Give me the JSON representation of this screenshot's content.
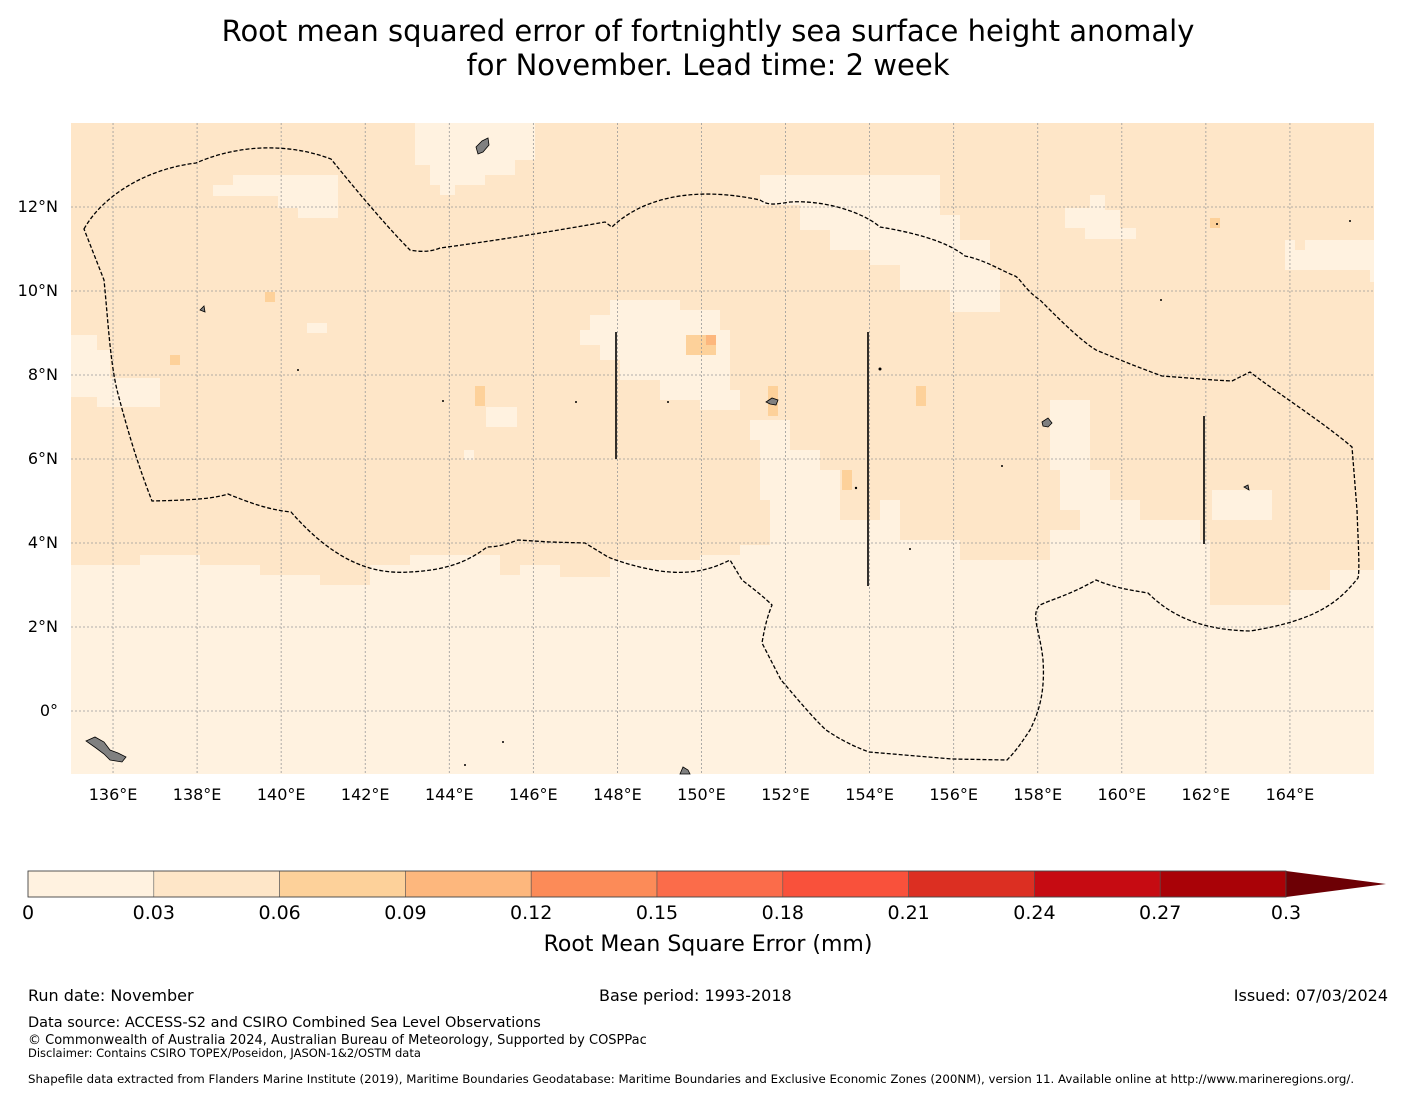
{
  "title": {
    "line1": "Root mean squared error of fortnightly sea surface height anomaly",
    "line2": "for November. Lead time: 2 week"
  },
  "map": {
    "lat_labels": [
      "12°N",
      "10°N",
      "8°N",
      "6°N",
      "4°N",
      "2°N",
      "0°"
    ],
    "lat_values": [
      12,
      10,
      8,
      6,
      4,
      2,
      0
    ],
    "lon_labels": [
      "136°E",
      "138°E",
      "140°E",
      "142°E",
      "144°E",
      "146°E",
      "148°E",
      "150°E",
      "152°E",
      "154°E",
      "156°E",
      "158°E",
      "160°E",
      "162°E",
      "164°E"
    ],
    "lon_values": [
      136,
      138,
      140,
      142,
      144,
      146,
      148,
      150,
      152,
      154,
      156,
      158,
      160,
      162,
      164
    ],
    "lon_range": [
      135,
      166
    ],
    "lat_range": [
      -1.5,
      14
    ],
    "land_color": "#808080",
    "boundary_color": "#000000"
  },
  "colorbar": {
    "ticks": [
      "0",
      "0.03",
      "0.06",
      "0.09",
      "0.12",
      "0.15",
      "0.18",
      "0.21",
      "0.24",
      "0.27",
      "0.3"
    ],
    "colors": [
      "#fff2e0",
      "#fee6c8",
      "#fdd19a",
      "#fdb77d",
      "#fc8b58",
      "#fb6c4a",
      "#f9513b",
      "#dc2f22",
      "#c60b12",
      "#a90207"
    ],
    "extend_color": "#6d0005",
    "label": "Root Mean Square Error (mm)"
  },
  "footer": {
    "run_date": "Run date: November",
    "base_period": "Base period: 1993-2018",
    "issued": "Issued: 07/03/2024",
    "data_source": "Data source: ACCESS-S2 and CSIRO Combined Sea Level Observations",
    "copyright": "© Commonwealth of Australia 2024, Australian Bureau of Meteorology, Supported by COSPPac",
    "disclaimer": "Disclaimer: Contains CSIRO TOPEX/Poseidon, JASON-1&2/OSTM data",
    "shapefile": "Shapefile data extracted from Flanders Marine Institute (2019), Maritime Boundaries Geodatabase: Maritime Boundaries and Exclusive Economic Zones (200NM), version 11. Available online at http://www.marineregions.org/."
  }
}
